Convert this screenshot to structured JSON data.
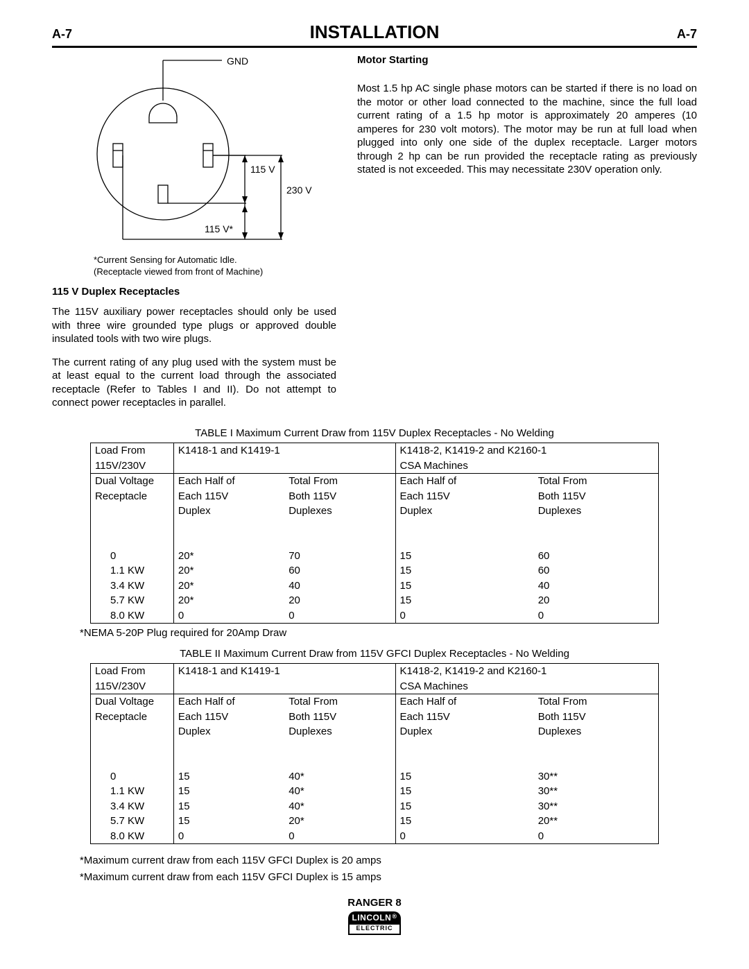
{
  "page": {
    "left_num": "A-7",
    "title": "INSTALLATION",
    "right_num": "A-7"
  },
  "diagram": {
    "gnd_label": "GND",
    "v115_label": "115 V",
    "v230_label": "230 V",
    "v115star_label": "115 V*",
    "footnote_l1": "*Current Sensing for Automatic Idle.",
    "footnote_l2": "(Receptacle viewed from front of Machine)"
  },
  "left": {
    "subhead": "115 V Duplex Receptacles",
    "p1": "The 115V auxiliary power receptacles should only be used with three wire grounded type plugs or approved double insulated tools with two wire plugs.",
    "p2": "The current rating of any plug used with the system must be at least equal to the current load through the associated receptacle (Refer to Tables I and II).  Do not attempt to connect power receptacles in parallel."
  },
  "right": {
    "subhead": "Motor Starting",
    "p1": "Most 1.5 hp AC single phase motors can be started if there is no load on the motor or other load connected to the machine, since the full load current rating of a 1.5 hp motor is approximately 20 amperes (10 amperes for 230 volt motors).  The motor may be run at full load when plugged into only one side of the duplex receptacle.  Larger motors through 2 hp can be run provided the receptacle rating as previously stated is not exceeded.  This may necessitate 230V operation only."
  },
  "table1": {
    "title": "TABLE I Maximum Current Draw from 115V Duplex Receptacles  - No Welding",
    "h_loadfrom_l1": "Load From",
    "h_loadfrom_l2": "115V/230V",
    "h_loadfrom_l3": "Dual Voltage",
    "h_loadfrom_l4": "Receptacle",
    "h_group1": "K1418-1 and K1419-1",
    "h_group2_l1": "K1418-2, K1419-2 and K2160-1",
    "h_group2_l2": "CSA Machines",
    "h_each_l1": "Each Half of",
    "h_each_l2": "Each 115V",
    "h_each_l3": "Duplex",
    "h_total_l1": "Total From",
    "h_total_l2": "Both 115V",
    "h_total_l3": "Duplexes",
    "rows": [
      [
        "0",
        "20*",
        "70",
        "15",
        "60"
      ],
      [
        "1.1 KW",
        "20*",
        "60",
        "15",
        "60"
      ],
      [
        "3.4 KW",
        "20*",
        "40",
        "15",
        "40"
      ],
      [
        "5.7 KW",
        "20*",
        "20",
        "15",
        "20"
      ],
      [
        "8.0 KW",
        "0",
        "0",
        "0",
        "0"
      ]
    ],
    "footnote": "*NEMA 5-20P Plug required for 20Amp Draw"
  },
  "table2": {
    "title": "TABLE II Maximum Current Draw from 115V GFCI Duplex Receptacles  - No Welding",
    "rows": [
      [
        "0",
        "15",
        "40*",
        "15",
        "30**"
      ],
      [
        "1.1 KW",
        "15",
        "40*",
        "15",
        "30**"
      ],
      [
        "3.4 KW",
        "15",
        "40*",
        "15",
        "30**"
      ],
      [
        "5.7 KW",
        "15",
        "20*",
        "15",
        "20**"
      ],
      [
        "8.0 KW",
        "0",
        "0",
        "0",
        "0"
      ]
    ],
    "footnote1": "*Maximum current draw from each 115V GFCI Duplex is 20 amps",
    "footnote2": "*Maximum current draw from each 115V GFCI Duplex is 15 amps"
  },
  "footer": {
    "product": "RANGER 8",
    "logo_top": "LINCOLN",
    "logo_bot": "ELECTRIC"
  }
}
